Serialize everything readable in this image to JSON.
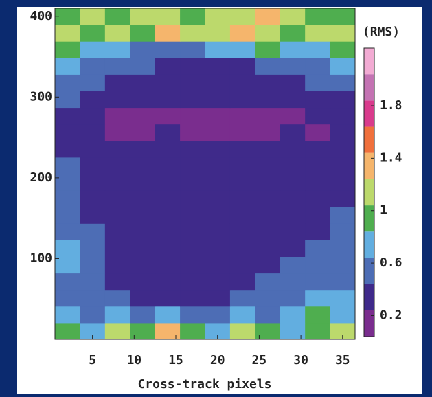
{
  "chart_data": {
    "type": "heatmap",
    "x_label": "Cross-track pixels",
    "colorbar_label": "(RMS)",
    "xlim": [
      0.5,
      36.5
    ],
    "xticks": [
      5,
      10,
      15,
      20,
      25,
      30,
      35
    ],
    "ylim": [
      0,
      410
    ],
    "yticks": [
      100,
      200,
      300,
      400
    ],
    "xbins": [
      0.5,
      3.5,
      6.5,
      9.5,
      12.5,
      15.5,
      18.5,
      21.5,
      24.5,
      27.5,
      30.5,
      33.5,
      36.5
    ],
    "ybins": [
      0,
      20.5,
      41,
      61.5,
      82,
      102.5,
      123,
      143.5,
      164,
      184.5,
      205,
      225.5,
      246,
      266.5,
      287,
      307.5,
      328,
      348.5,
      369,
      389.5,
      410
    ],
    "values": [
      [
        0.9,
        0.7,
        1.1,
        0.9,
        1.3,
        0.9,
        0.7,
        1.1,
        0.9,
        0.7,
        0.9,
        1.1
      ],
      [
        0.7,
        0.5,
        0.7,
        0.5,
        0.7,
        0.5,
        0.5,
        0.7,
        0.5,
        0.7,
        0.9,
        0.7
      ],
      [
        0.5,
        0.5,
        0.5,
        0.3,
        0.3,
        0.3,
        0.3,
        0.5,
        0.5,
        0.5,
        0.7,
        0.7
      ],
      [
        0.5,
        0.5,
        0.3,
        0.3,
        0.3,
        0.3,
        0.3,
        0.3,
        0.5,
        0.5,
        0.5,
        0.5
      ],
      [
        0.7,
        0.5,
        0.3,
        0.3,
        0.3,
        0.3,
        0.3,
        0.3,
        0.3,
        0.5,
        0.5,
        0.5
      ],
      [
        0.7,
        0.5,
        0.3,
        0.3,
        0.3,
        0.3,
        0.3,
        0.3,
        0.3,
        0.3,
        0.5,
        0.5
      ],
      [
        0.5,
        0.5,
        0.3,
        0.3,
        0.3,
        0.3,
        0.3,
        0.3,
        0.3,
        0.3,
        0.3,
        0.5
      ],
      [
        0.5,
        0.3,
        0.3,
        0.3,
        0.3,
        0.3,
        0.3,
        0.3,
        0.3,
        0.3,
        0.3,
        0.5
      ],
      [
        0.5,
        0.3,
        0.3,
        0.3,
        0.3,
        0.3,
        0.3,
        0.3,
        0.3,
        0.3,
        0.3,
        0.3
      ],
      [
        0.5,
        0.3,
        0.3,
        0.3,
        0.3,
        0.3,
        0.3,
        0.3,
        0.3,
        0.3,
        0.3,
        0.3
      ],
      [
        0.5,
        0.3,
        0.3,
        0.3,
        0.3,
        0.3,
        0.3,
        0.3,
        0.3,
        0.3,
        0.3,
        0.3
      ],
      [
        0.3,
        0.3,
        0.3,
        0.3,
        0.3,
        0.3,
        0.3,
        0.3,
        0.3,
        0.3,
        0.3,
        0.3
      ],
      [
        0.3,
        0.3,
        0.15,
        0.15,
        0.3,
        0.15,
        0.15,
        0.15,
        0.15,
        0.3,
        0.15,
        0.3
      ],
      [
        0.3,
        0.3,
        0.15,
        0.15,
        0.15,
        0.15,
        0.15,
        0.15,
        0.15,
        0.15,
        0.3,
        0.3
      ],
      [
        0.5,
        0.3,
        0.3,
        0.3,
        0.3,
        0.3,
        0.3,
        0.3,
        0.3,
        0.3,
        0.3,
        0.3
      ],
      [
        0.5,
        0.5,
        0.3,
        0.3,
        0.3,
        0.3,
        0.3,
        0.3,
        0.3,
        0.3,
        0.5,
        0.5
      ],
      [
        0.7,
        0.5,
        0.5,
        0.5,
        0.3,
        0.3,
        0.3,
        0.3,
        0.5,
        0.5,
        0.5,
        0.7
      ],
      [
        0.9,
        0.7,
        0.7,
        0.5,
        0.5,
        0.5,
        0.7,
        0.7,
        0.9,
        0.7,
        0.7,
        0.9
      ],
      [
        1.1,
        0.9,
        1.1,
        0.9,
        1.3,
        1.1,
        1.1,
        1.3,
        1.1,
        0.9,
        1.1,
        1.1
      ],
      [
        0.9,
        1.1,
        0.9,
        1.1,
        1.1,
        0.9,
        1.1,
        1.1,
        1.3,
        1.1,
        0.9,
        0.9
      ]
    ],
    "colorbar": {
      "levels": [
        0.04,
        0.24,
        0.44,
        0.64,
        0.84,
        1.04,
        1.24,
        1.44,
        1.64,
        1.84,
        2.04,
        2.24
      ],
      "colors": [
        "#7a2d8e",
        "#3f2a8a",
        "#4d6db5",
        "#62aee0",
        "#4fae4f",
        "#bcd96c",
        "#f5b56c",
        "#f0703c",
        "#d93b8c",
        "#c473b3",
        "#f2abd3"
      ],
      "ticks": [
        0.2,
        0.6,
        1.0,
        1.4,
        1.8
      ]
    }
  }
}
